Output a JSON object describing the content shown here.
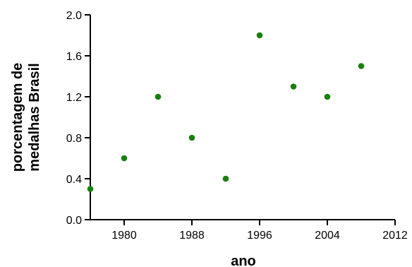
{
  "chart_data": {
    "type": "scatter",
    "title": "",
    "xlabel": "ano",
    "ylabel_lines": [
      "porcentagem de",
      "medalhas Brasil"
    ],
    "x": [
      1976,
      1980,
      1984,
      1988,
      1992,
      1996,
      2000,
      2004,
      2008
    ],
    "y": [
      0.3,
      0.6,
      1.2,
      0.8,
      0.4,
      1.8,
      1.3,
      1.2,
      1.5
    ],
    "xlim": [
      1976,
      2012
    ],
    "ylim": [
      0.0,
      2.0
    ],
    "xticks": [
      1980,
      1988,
      1996,
      2004,
      2012
    ],
    "xtick_labels": [
      "1980",
      "1988",
      "1996",
      "2004",
      "2012"
    ],
    "yticks": [
      0.0,
      0.4,
      0.8,
      1.2,
      1.6,
      2.0
    ],
    "ytick_labels": [
      "0.0",
      "0.4",
      "0.8",
      "1.2",
      "1.6",
      "2.0"
    ],
    "grid": false,
    "marker_color": "#1a7f0f"
  }
}
